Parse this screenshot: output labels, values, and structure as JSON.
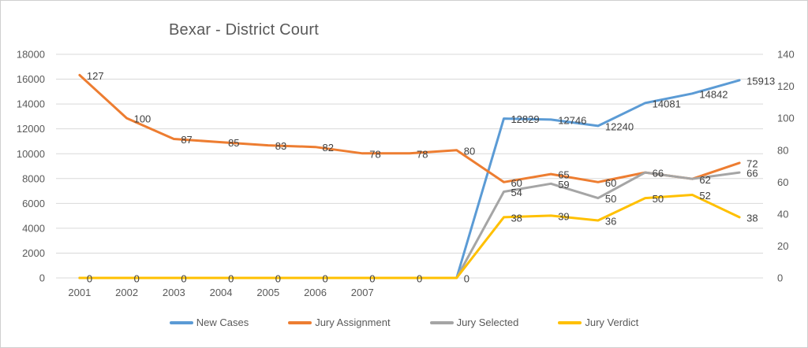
{
  "chart_data": {
    "type": "line",
    "title": "Bexar - District Court",
    "n_points": 15,
    "x_tick_labels": [
      "2001",
      "2002",
      "2003",
      "2004",
      "2005",
      "2006",
      "2007"
    ],
    "left_axis": {
      "min": 0,
      "max": 18000,
      "ticks": [
        0,
        2000,
        4000,
        6000,
        8000,
        10000,
        12000,
        14000,
        16000,
        18000
      ]
    },
    "right_axis": {
      "min": 0,
      "max": 140,
      "ticks": [
        0,
        20,
        40,
        60,
        80,
        100,
        120,
        140
      ]
    },
    "grid": true,
    "legend_position": "bottom",
    "series": [
      {
        "name": "New Cases",
        "color": "#5B9BD5",
        "axis": "left",
        "values": [
          0,
          0,
          0,
          0,
          0,
          0,
          0,
          0,
          0,
          12829,
          12746,
          12240,
          14081,
          14842,
          15913
        ],
        "labels": [
          "",
          "",
          "",
          "",
          "",
          "",
          "",
          "",
          "",
          "12829",
          "12746",
          "12240",
          "14081",
          "14842",
          "15913"
        ]
      },
      {
        "name": "Jury Assignment",
        "color": "#ED7D31",
        "axis": "right",
        "values": [
          127,
          100,
          87,
          85,
          83,
          82,
          78,
          78,
          80,
          60,
          65,
          60,
          66,
          62,
          72
        ],
        "labels": [
          "127",
          "100",
          "87",
          "85",
          "83",
          "82",
          "78",
          "78",
          "80",
          "60",
          "65",
          "60",
          "66",
          "62",
          "72"
        ]
      },
      {
        "name": "Jury Selected",
        "color": "#A5A5A5",
        "axis": "right",
        "values": [
          0,
          0,
          0,
          0,
          0,
          0,
          0,
          0,
          0,
          54,
          59,
          50,
          66,
          62,
          66
        ],
        "labels": [
          "",
          "",
          "",
          "",
          "",
          "",
          "",
          "",
          "",
          "54",
          "59",
          "50",
          "",
          "",
          "66"
        ]
      },
      {
        "name": "Jury Verdict",
        "color": "#FFC000",
        "axis": "right",
        "values": [
          0,
          0,
          0,
          0,
          0,
          0,
          0,
          0,
          0,
          38,
          39,
          36,
          50,
          52,
          38
        ],
        "labels": [
          "0",
          "0",
          "0",
          "0",
          "0",
          "0",
          "0",
          "0",
          "0",
          "38",
          "39",
          "36",
          "50",
          "52",
          "38"
        ]
      }
    ]
  },
  "colors": {
    "grid": "#D9D9D9",
    "tick_text": "#595959",
    "x_label_text": "#595959",
    "data_label_text": "#404040",
    "title_text": "#595959",
    "legend_text": "#595959",
    "frame_border": "#CFCFCF"
  }
}
